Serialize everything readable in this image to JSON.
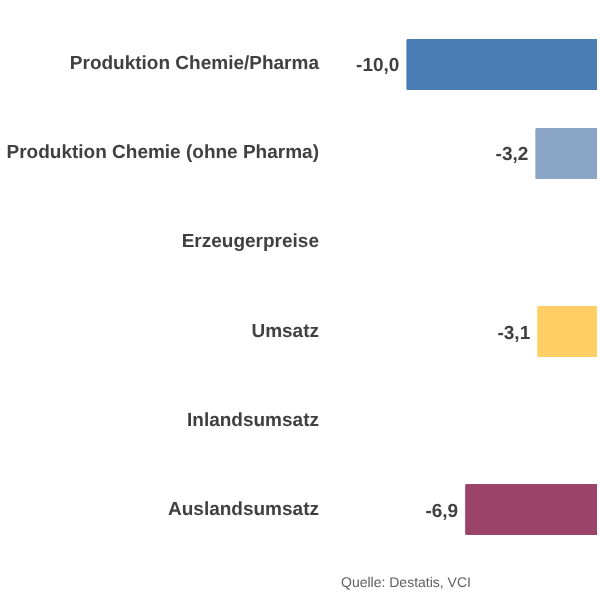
{
  "chart_data": {
    "type": "bar",
    "orientation": "horizontal",
    "categories": [
      "Produktion Chemie/Pharma",
      "Produktion Chemie (ohne Pharma)",
      "Erzeugerpreise",
      "Umsatz",
      "Inlandsumsatz",
      "Auslandsumsatz"
    ],
    "values": [
      -10.0,
      -3.2,
      null,
      -3.1,
      null,
      -6.9
    ],
    "colors": [
      "#4a7db3",
      "#8aa5c6",
      "#ffffff",
      "#ffcf66",
      "#ffffff",
      "#9b4368"
    ],
    "value_labels": [
      "-10,0",
      "-3,2",
      null,
      "-3,1",
      null,
      "-6,9"
    ],
    "tick_labels": false,
    "grid": false,
    "annotations": [
      "Quelle: Destatis, VCI"
    ]
  }
}
